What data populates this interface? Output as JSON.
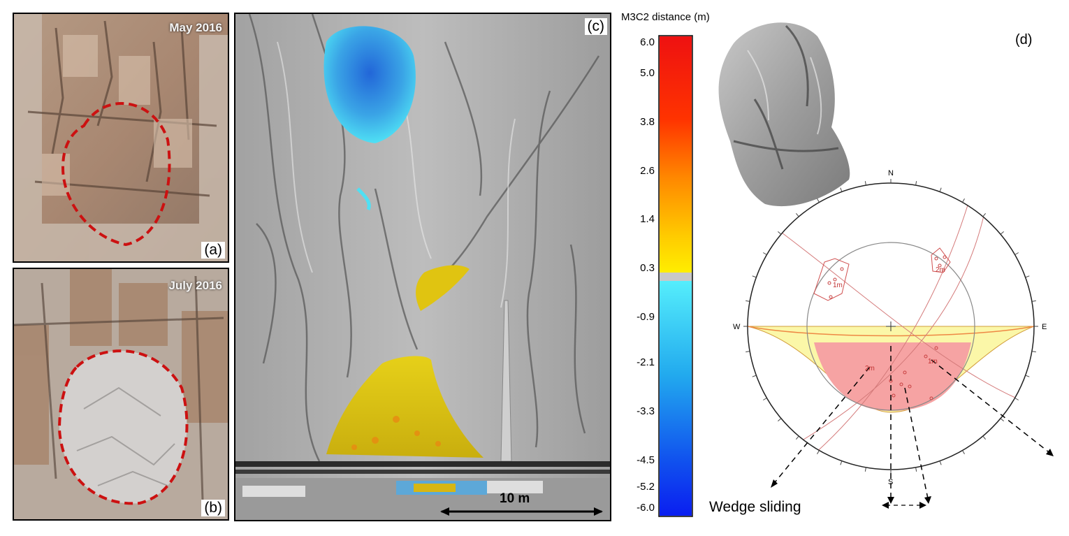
{
  "panels": {
    "a": {
      "label": "(a)",
      "date": "May 2016"
    },
    "b": {
      "label": "(b)",
      "date": "July 2016"
    },
    "c": {
      "label": "(c)",
      "scale": "10 m"
    },
    "d": {
      "label": "(d)",
      "annotation": "Wedge sliding"
    }
  },
  "colorbar": {
    "title": "M3C2 distance (m)",
    "ticks": [
      "6.0",
      "5.0",
      "3.8",
      "2.6",
      "1.4",
      "0.3",
      "-0.9",
      "-2.1",
      "-3.3",
      "-4.5",
      "-5.2",
      "-6.0"
    ]
  },
  "stereonet": {
    "directions": {
      "n": "N",
      "s": "S",
      "e": "E",
      "w": "W"
    },
    "set_labels": [
      "1m",
      "2m",
      "2m",
      "1m"
    ]
  },
  "colors": {
    "outline": "#cc1111",
    "wedge_fill": "#f6a3a3",
    "plane_fill": "#fbf7a8",
    "cold": "#35c9ec",
    "hot": "#e2c30f"
  }
}
